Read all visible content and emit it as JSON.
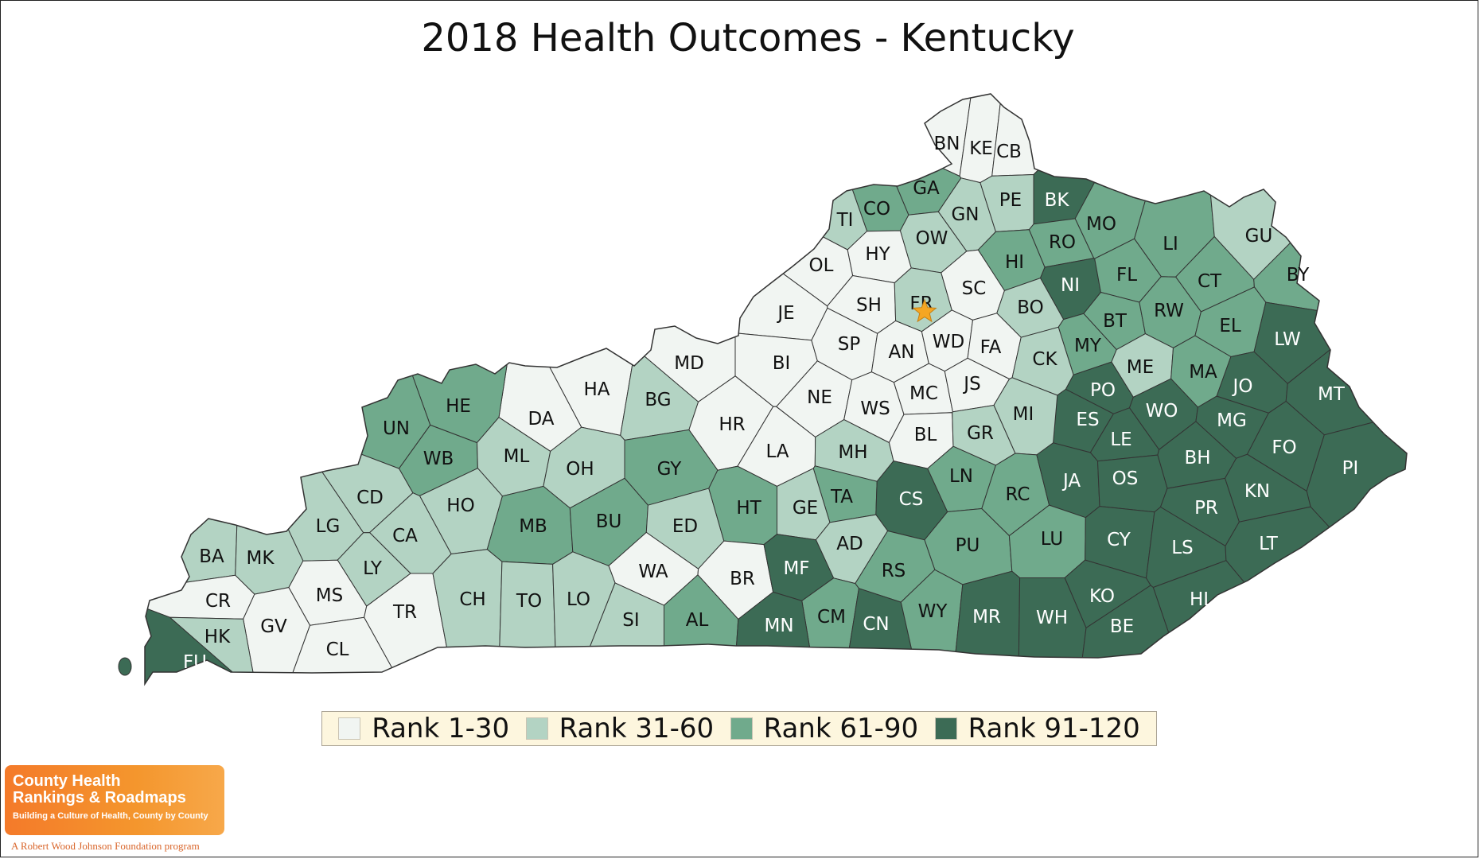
{
  "title": "2018 Health Outcomes - Kentucky",
  "colors": {
    "rank_1_30": "#f1f5f2",
    "rank_31_60": "#b3d3c3",
    "rank_61_90": "#70aa8c",
    "rank_91_120": "#3c6b55",
    "border": "#333333",
    "capital_star": "#f5a623"
  },
  "legend": [
    {
      "label": "Rank 1-30",
      "tier": 1
    },
    {
      "label": "Rank 31-60",
      "tier": 2
    },
    {
      "label": "Rank 61-90",
      "tier": 3
    },
    {
      "label": "Rank 91-120",
      "tier": 4
    }
  ],
  "capital_county": "FR",
  "counties": [
    {
      "code": "BN",
      "tier": 1
    },
    {
      "code": "KE",
      "tier": 1
    },
    {
      "code": "CB",
      "tier": 1
    },
    {
      "code": "GA",
      "tier": 3
    },
    {
      "code": "CO",
      "tier": 3
    },
    {
      "code": "TI",
      "tier": 2
    },
    {
      "code": "GN",
      "tier": 2
    },
    {
      "code": "PE",
      "tier": 2
    },
    {
      "code": "BK",
      "tier": 4
    },
    {
      "code": "MO",
      "tier": 3
    },
    {
      "code": "LI",
      "tier": 3
    },
    {
      "code": "GU",
      "tier": 2
    },
    {
      "code": "OW",
      "tier": 2
    },
    {
      "code": "HY",
      "tier": 1
    },
    {
      "code": "OL",
      "tier": 1
    },
    {
      "code": "HI",
      "tier": 3
    },
    {
      "code": "RO",
      "tier": 3
    },
    {
      "code": "NI",
      "tier": 4
    },
    {
      "code": "FL",
      "tier": 3
    },
    {
      "code": "CT",
      "tier": 3
    },
    {
      "code": "BY",
      "tier": 3
    },
    {
      "code": "JE",
      "tier": 1
    },
    {
      "code": "SH",
      "tier": 1
    },
    {
      "code": "FR",
      "tier": 2
    },
    {
      "code": "SC",
      "tier": 1
    },
    {
      "code": "BO",
      "tier": 2
    },
    {
      "code": "BT",
      "tier": 3
    },
    {
      "code": "RW",
      "tier": 3
    },
    {
      "code": "EL",
      "tier": 3
    },
    {
      "code": "LW",
      "tier": 4
    },
    {
      "code": "MD",
      "tier": 1
    },
    {
      "code": "BI",
      "tier": 1
    },
    {
      "code": "SP",
      "tier": 1
    },
    {
      "code": "AN",
      "tier": 1
    },
    {
      "code": "WD",
      "tier": 1
    },
    {
      "code": "FA",
      "tier": 1
    },
    {
      "code": "MY",
      "tier": 3
    },
    {
      "code": "ME",
      "tier": 2
    },
    {
      "code": "MA",
      "tier": 3
    },
    {
      "code": "HA",
      "tier": 1
    },
    {
      "code": "DA",
      "tier": 1
    },
    {
      "code": "HE",
      "tier": 3
    },
    {
      "code": "BG",
      "tier": 2
    },
    {
      "code": "HR",
      "tier": 1
    },
    {
      "code": "NE",
      "tier": 1
    },
    {
      "code": "WS",
      "tier": 1
    },
    {
      "code": "MC",
      "tier": 1
    },
    {
      "code": "JS",
      "tier": 1
    },
    {
      "code": "CK",
      "tier": 2
    },
    {
      "code": "PO",
      "tier": 4
    },
    {
      "code": "ES",
      "tier": 4
    },
    {
      "code": "WO",
      "tier": 4
    },
    {
      "code": "JO",
      "tier": 4
    },
    {
      "code": "MT",
      "tier": 4
    },
    {
      "code": "MI",
      "tier": 2
    },
    {
      "code": "MG",
      "tier": 4
    },
    {
      "code": "UN",
      "tier": 3
    },
    {
      "code": "WB",
      "tier": 3
    },
    {
      "code": "ML",
      "tier": 2
    },
    {
      "code": "OH",
      "tier": 2
    },
    {
      "code": "LA",
      "tier": 1
    },
    {
      "code": "MH",
      "tier": 2
    },
    {
      "code": "BL",
      "tier": 1
    },
    {
      "code": "GR",
      "tier": 2
    },
    {
      "code": "LE",
      "tier": 4
    },
    {
      "code": "BH",
      "tier": 4
    },
    {
      "code": "FO",
      "tier": 4
    },
    {
      "code": "PI",
      "tier": 4
    },
    {
      "code": "CD",
      "tier": 2
    },
    {
      "code": "HO",
      "tier": 2
    },
    {
      "code": "GY",
      "tier": 3
    },
    {
      "code": "TA",
      "tier": 3
    },
    {
      "code": "CS",
      "tier": 4
    },
    {
      "code": "LN",
      "tier": 3
    },
    {
      "code": "RC",
      "tier": 3
    },
    {
      "code": "JA",
      "tier": 4
    },
    {
      "code": "OS",
      "tier": 4
    },
    {
      "code": "KN",
      "tier": 4
    },
    {
      "code": "LG",
      "tier": 2
    },
    {
      "code": "CA",
      "tier": 2
    },
    {
      "code": "MB",
      "tier": 3
    },
    {
      "code": "BU",
      "tier": 3
    },
    {
      "code": "ED",
      "tier": 2
    },
    {
      "code": "HT",
      "tier": 3
    },
    {
      "code": "GE",
      "tier": 2
    },
    {
      "code": "PR",
      "tier": 4
    },
    {
      "code": "BA",
      "tier": 2
    },
    {
      "code": "MK",
      "tier": 2
    },
    {
      "code": "LY",
      "tier": 2
    },
    {
      "code": "AD",
      "tier": 2
    },
    {
      "code": "PU",
      "tier": 3
    },
    {
      "code": "LU",
      "tier": 3
    },
    {
      "code": "CY",
      "tier": 4
    },
    {
      "code": "LS",
      "tier": 4
    },
    {
      "code": "LT",
      "tier": 4
    },
    {
      "code": "WA",
      "tier": 1
    },
    {
      "code": "BR",
      "tier": 1
    },
    {
      "code": "MF",
      "tier": 4
    },
    {
      "code": "CR",
      "tier": 1
    },
    {
      "code": "MS",
      "tier": 1
    },
    {
      "code": "TR",
      "tier": 1
    },
    {
      "code": "CH",
      "tier": 2
    },
    {
      "code": "TO",
      "tier": 2
    },
    {
      "code": "LO",
      "tier": 2
    },
    {
      "code": "RS",
      "tier": 3
    },
    {
      "code": "KO",
      "tier": 4
    },
    {
      "code": "HL",
      "tier": 4
    },
    {
      "code": "GV",
      "tier": 1
    },
    {
      "code": "HK",
      "tier": 2
    },
    {
      "code": "SI",
      "tier": 2
    },
    {
      "code": "AL",
      "tier": 3
    },
    {
      "code": "CM",
      "tier": 3
    },
    {
      "code": "MN",
      "tier": 4
    },
    {
      "code": "CN",
      "tier": 4
    },
    {
      "code": "WY",
      "tier": 3
    },
    {
      "code": "MR",
      "tier": 4
    },
    {
      "code": "WH",
      "tier": 4
    },
    {
      "code": "BE",
      "tier": 4
    },
    {
      "code": "CL",
      "tier": 1
    },
    {
      "code": "FU",
      "tier": 4
    }
  ],
  "logo": {
    "line1": "County Health",
    "line2": "Rankings & Roadmaps",
    "tagline": "Building a Culture of Health, County by County",
    "program": "A Robert Wood Johnson Foundation program"
  }
}
